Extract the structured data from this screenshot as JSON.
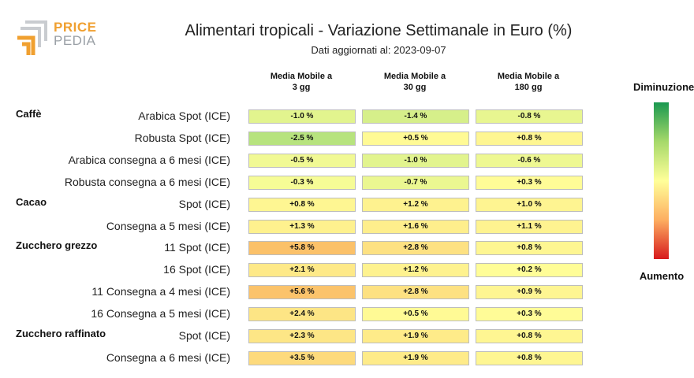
{
  "logo": {
    "line1": "PRICE",
    "line2": "PEDIA"
  },
  "chart_data": {
    "type": "table",
    "title": "Alimentari tropicali - Variazione Settimanale in Euro (%)",
    "subtitle": "Dati aggiornati al: 2023-09-07",
    "columns": [
      "Media Mobile a\n3 gg",
      "Media Mobile a\n30 gg",
      "Media Mobile a\n180 gg"
    ],
    "groups": [
      {
        "label": "Caffè",
        "rows": [
          {
            "label": "Arabica Spot (ICE)",
            "values": [
              -1.0,
              -1.4,
              -0.8
            ],
            "texts": [
              "-1.0 %",
              "-1.4 %",
              "-0.8 %"
            ]
          },
          {
            "label": "Robusta Spot (ICE)",
            "values": [
              -2.5,
              0.5,
              0.8
            ],
            "texts": [
              "-2.5 %",
              "+0.5 %",
              "+0.8 %"
            ]
          },
          {
            "label": "Arabica consegna a 6 mesi (ICE)",
            "values": [
              -0.5,
              -1.0,
              -0.6
            ],
            "texts": [
              "-0.5 %",
              "-1.0 %",
              "-0.6 %"
            ]
          },
          {
            "label": "Robusta consegna a 6 mesi (ICE)",
            "values": [
              -0.3,
              -0.7,
              0.3
            ],
            "texts": [
              "-0.3 %",
              "-0.7 %",
              "+0.3 %"
            ]
          }
        ]
      },
      {
        "label": "Cacao",
        "rows": [
          {
            "label": "Spot (ICE)",
            "values": [
              0.8,
              1.2,
              1.0
            ],
            "texts": [
              "+0.8 %",
              "+1.2 %",
              "+1.0 %"
            ]
          },
          {
            "label": "Consegna a 5 mesi (ICE)",
            "values": [
              1.3,
              1.6,
              1.1
            ],
            "texts": [
              "+1.3 %",
              "+1.6 %",
              "+1.1 %"
            ]
          }
        ]
      },
      {
        "label": "Zucchero grezzo",
        "rows": [
          {
            "label": "11 Spot (ICE)",
            "values": [
              5.8,
              2.8,
              0.8
            ],
            "texts": [
              "+5.8 %",
              "+2.8 %",
              "+0.8 %"
            ]
          },
          {
            "label": "16 Spot (ICE)",
            "values": [
              2.1,
              1.2,
              0.2
            ],
            "texts": [
              "+2.1 %",
              "+1.2 %",
              "+0.2 %"
            ]
          },
          {
            "label": "11 Consegna a 4 mesi (ICE)",
            "values": [
              5.6,
              2.8,
              0.9
            ],
            "texts": [
              "+5.6 %",
              "+2.8 %",
              "+0.9 %"
            ]
          },
          {
            "label": "16 Consegna a 5 mesi (ICE)",
            "values": [
              2.4,
              0.5,
              0.3
            ],
            "texts": [
              "+2.4 %",
              "+0.5 %",
              "+0.3 %"
            ]
          }
        ]
      },
      {
        "label": "Zucchero raffinato",
        "rows": [
          {
            "label": "Spot (ICE)",
            "values": [
              2.3,
              1.9,
              0.8
            ],
            "texts": [
              "+2.3 %",
              "+1.9 %",
              "+0.8 %"
            ]
          },
          {
            "label": "Consegna a 6 mesi (ICE)",
            "values": [
              3.5,
              1.9,
              0.8
            ],
            "texts": [
              "+3.5 %",
              "+1.9 %",
              "+0.8 %"
            ]
          }
        ]
      }
    ],
    "legend": {
      "top": "Diminuzione",
      "bottom": "Aumento",
      "top_color": "#1a9850",
      "mid_color": "#ffff99",
      "bottom_color": "#d7191c"
    }
  }
}
